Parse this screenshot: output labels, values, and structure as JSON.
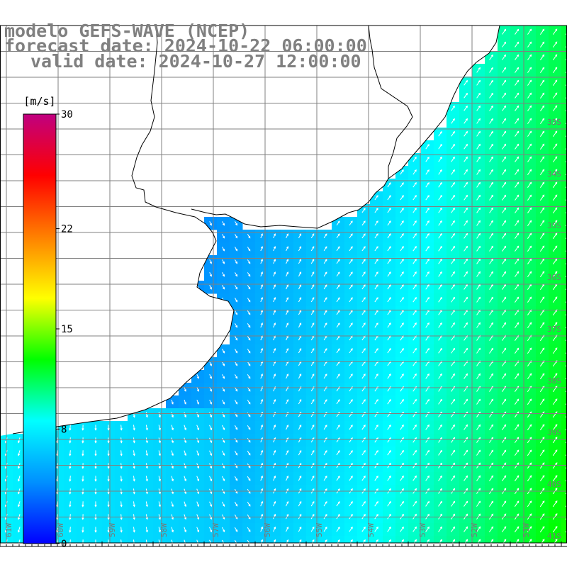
{
  "title": {
    "line1": "modelo GEFS-WAVE (NCEP)",
    "line2": "forecast date: 2024-10-22 06:00:00",
    "line3": "valid date: 2024-10-27 12:00:00"
  },
  "colorbar": {
    "unit": "[m/s]",
    "ticks": [
      {
        "value": 30,
        "label": "30"
      },
      {
        "value": 22,
        "label": "22"
      },
      {
        "value": 15,
        "label": "15"
      },
      {
        "value": 8,
        "label": "8"
      },
      {
        "value": 0,
        "label": "0"
      }
    ],
    "min": 0,
    "max": 30,
    "stops": [
      "#0000ff",
      "#0090ff",
      "#00ffff",
      "#00ff00",
      "#ffff00",
      "#ff8000",
      "#ff0000",
      "#c00080"
    ]
  },
  "map": {
    "land_color": "#ffffff",
    "grid_color": "#808080",
    "coastline_color": "#000000",
    "vector_color": "#ffffff",
    "lat_labels": [
      "33S",
      "34S",
      "35S",
      "36S",
      "37S",
      "38S",
      "39S",
      "40S",
      "41S"
    ],
    "lon_labels": [
      "61W",
      "60W",
      "59W",
      "58W",
      "57W",
      "56W",
      "55W",
      "54W",
      "53W",
      "52W",
      "51W"
    ]
  }
}
